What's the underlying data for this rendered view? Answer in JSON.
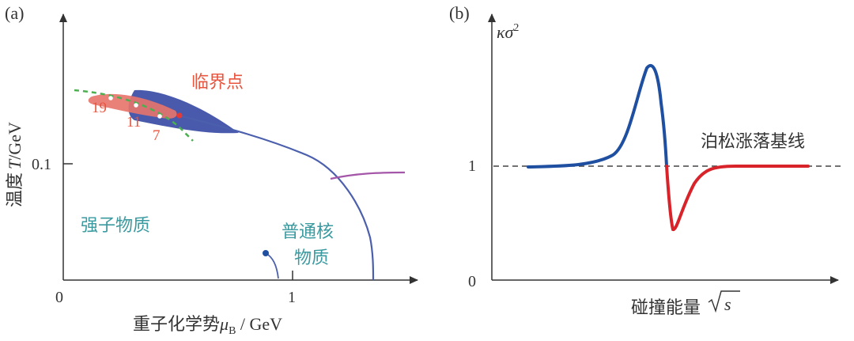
{
  "colors": {
    "axis": "#333333",
    "red_text": "#e8553f",
    "teal_text": "#3a9a9f",
    "blue_curve": "#1f4fa0",
    "red_curve": "#d9232a",
    "phase_line": "#4b5fad",
    "purple_line": "#a456a8",
    "green_dash": "#4caf50",
    "blue_region": "#3f51a8",
    "red_region": "#e8736a"
  },
  "panel_a": {
    "label": "(a)",
    "y_axis_label_cn": "温度",
    "y_axis_label_italic": "T",
    "y_axis_label_unit": "/GeV",
    "y_tick": "0.1",
    "x_tick_0": "0",
    "x_tick_1": "1",
    "x_axis_label_cn": "重子化学势",
    "x_axis_label_mu": "μ",
    "x_axis_label_sub": "B",
    "x_axis_label_unit": " / GeV",
    "critical_point_label": "临界点",
    "hadron_label": "强子物质",
    "nuclear_label_1": "普通核",
    "nuclear_label_2": "物质",
    "energy_labels": [
      "19",
      "11",
      "7"
    ]
  },
  "panel_b": {
    "label": "(b)",
    "y_axis_label": "κσ",
    "y_axis_sup": "2",
    "y_tick_1": "1",
    "y_tick_0": "0",
    "baseline_label": "泊松涨落基线",
    "x_axis_label_cn": "碰撞能量",
    "x_axis_label_var": "s"
  }
}
